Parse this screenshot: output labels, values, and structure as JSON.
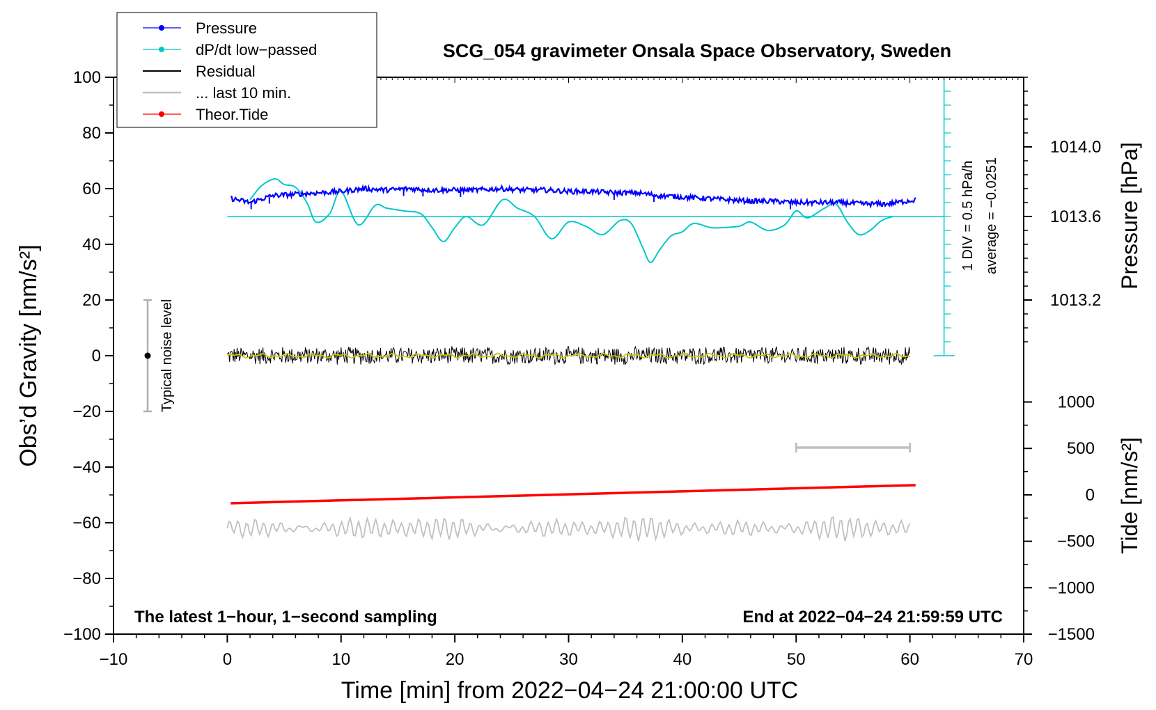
{
  "chart_data": {
    "type": "line",
    "title": "SCG_054 gravimeter Onsala Space Observatory, Sweden",
    "xlabel": "Time [min] from 2022−04−24 21:00:00 UTC",
    "ylabel_left": "Obs’d Gravity [nm/s²]",
    "ylabel_right_top": "Pressure [hPa]",
    "ylabel_right_bottom": "Tide [nm/s²]",
    "xlim": [
      -10,
      70
    ],
    "ylim_gravity": [
      -100,
      100
    ],
    "x_ticks": [
      -10,
      0,
      10,
      20,
      30,
      40,
      50,
      60,
      70
    ],
    "x_tick_labels": [
      "−10",
      "0",
      "10",
      "20",
      "30",
      "40",
      "50",
      "60",
      "70"
    ],
    "y_ticks": [
      -100,
      -80,
      -60,
      -40,
      -20,
      0,
      20,
      40,
      60,
      80,
      100
    ],
    "y_tick_labels": [
      "−100",
      "−80",
      "−60",
      "−40",
      "−20",
      "0",
      "20",
      "40",
      "60",
      "80",
      "100"
    ],
    "pressure_axis": {
      "ticks": [
        1013.2,
        1013.6,
        1014.0
      ],
      "tick_labels": [
        "1013.2",
        "1013.6",
        "1014.0"
      ],
      "gravity_equivalent": [
        20,
        50,
        75
      ]
    },
    "tide_axis": {
      "ticks": [
        -1500,
        -1000,
        -500,
        0,
        500,
        1000
      ],
      "tick_labels": [
        "−1500",
        "−1000",
        "−500",
        "0",
        "500",
        "1000"
      ],
      "range": [
        -1500,
        1500
      ]
    },
    "legend": {
      "position": "top-left",
      "entries": [
        {
          "label": "Pressure",
          "color": "#0000ff",
          "marker": "dot"
        },
        {
          "label": "dP/dt low−passed",
          "color": "#00c8c8",
          "marker": "dot"
        },
        {
          "label": "Residual",
          "color": "#000000",
          "marker": "line"
        },
        {
          "label": "... last 10 min.",
          "color": "#c0c0c0",
          "marker": "line"
        },
        {
          "label": "Theor.Tide",
          "color": "#ff0000",
          "marker": "dot"
        }
      ]
    },
    "series": [
      {
        "name": "Pressure",
        "color": "#0000ff",
        "x": [
          0.3,
          2,
          4,
          6,
          8,
          10,
          12,
          14,
          16,
          18,
          20,
          22,
          24,
          26,
          28,
          30,
          32,
          34,
          36,
          38,
          40,
          42,
          44,
          46,
          48,
          50,
          52,
          54,
          56,
          58,
          60.5
        ],
        "y": [
          56.5,
          55,
          57.5,
          58,
          58.5,
          59,
          60,
          59.5,
          60,
          59.5,
          59.5,
          59.5,
          60,
          59.5,
          59.5,
          59,
          59,
          58.5,
          58.5,
          57.5,
          57,
          56.5,
          56,
          55.5,
          55.5,
          55,
          55,
          55,
          54.5,
          54.5,
          56
        ]
      },
      {
        "name": "dP/dt low−passed",
        "color": "#00c8c8",
        "x": [
          2,
          3,
          4.2,
          5,
          6,
          7,
          7.8,
          9,
          10,
          11.5,
          13,
          14,
          15.5,
          17,
          18,
          19,
          20,
          21,
          22.5,
          24.2,
          25.5,
          27,
          28.5,
          30,
          31.5,
          33,
          34.5,
          35.5,
          36.5,
          37.2,
          38,
          39,
          40,
          41,
          42.5,
          43.5,
          45,
          46,
          47.5,
          49,
          50,
          51,
          52.5,
          53.5,
          54.5,
          55.5,
          56.5,
          57.5,
          58.5
        ],
        "y": [
          56,
          61,
          63.5,
          61.5,
          60.5,
          55,
          48,
          51,
          59,
          47,
          54,
          53,
          52,
          51,
          46,
          41,
          46,
          50,
          47,
          56,
          53,
          50,
          42,
          48,
          46.5,
          43.5,
          48.5,
          47.5,
          39,
          33.5,
          38,
          43,
          44.5,
          47.5,
          46,
          46,
          46.5,
          48,
          45,
          47,
          52,
          49.5,
          53,
          54.5,
          48,
          43.5,
          45,
          48.5,
          50
        ]
      },
      {
        "name": "Residual",
        "color": "#000000",
        "x": [
          0,
          60
        ],
        "y": [
          0,
          0
        ],
        "noise_amplitude": 3.5
      },
      {
        "name": "Residual low−passed",
        "color": "#c8c800",
        "x": [
          0,
          60
        ],
        "y": [
          0,
          0
        ]
      },
      {
        "name": "... last 10 min.",
        "color": "#c0c0c0",
        "x": [
          0,
          60
        ],
        "y": [
          -62,
          -62
        ],
        "amplitude": 4
      },
      {
        "name": "Theor.Tide",
        "color": "#ff0000",
        "x": [
          0.3,
          60.5
        ],
        "y": [
          -53,
          -46.5
        ]
      }
    ],
    "zero_reference": {
      "y": 50,
      "color": "#00c8c8",
      "x": [
        0,
        63
      ]
    },
    "scale_bar": {
      "x": [
        50,
        60
      ],
      "y": -33,
      "color": "#c0c0c0"
    },
    "noise_bar": {
      "x": -7,
      "y": [
        -20,
        20
      ],
      "center": 0,
      "label": "Typical noise level"
    },
    "dpdt_scale": {
      "x": 63,
      "y": [
        0,
        100
      ],
      "div": 5,
      "label1": "1 DIV = 0.5 hPa/h",
      "label2": "average = −0.0251"
    },
    "annotations": {
      "bottom_left": "The latest 1−hour, 1−second sampling",
      "bottom_right": "End at 2022−04−24 21:59:59 UTC"
    }
  }
}
